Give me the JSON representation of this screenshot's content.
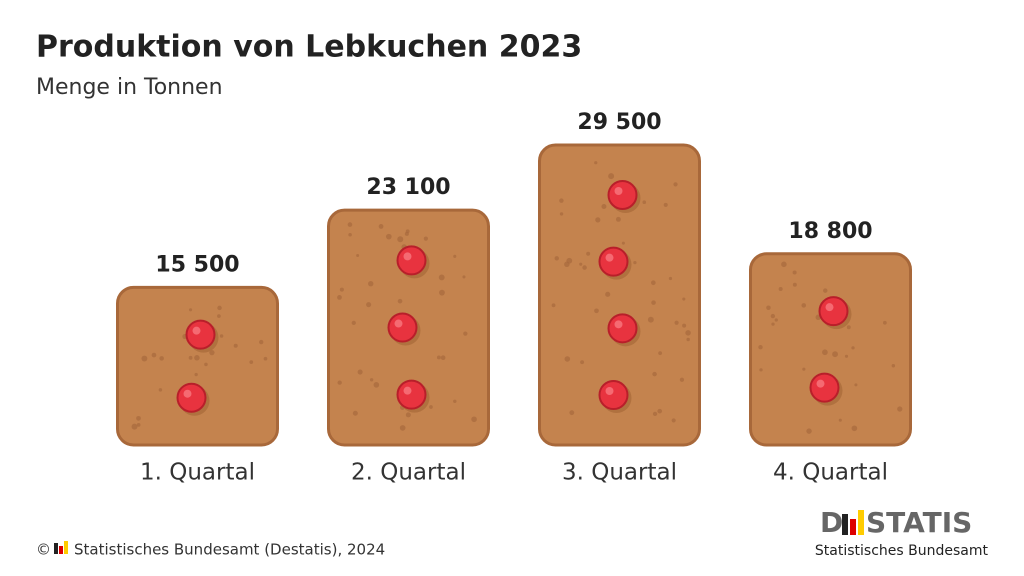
{
  "chart_data": {
    "type": "bar",
    "title": "Produktion von Lebkuchen 2023",
    "subtitle": "Menge in Tonnen",
    "categories": [
      "1. Quartal",
      "2. Quartal",
      "3. Quartal",
      "4. Quartal"
    ],
    "values": [
      15500,
      23100,
      29500,
      18800
    ],
    "value_labels": [
      "15 500",
      "23 100",
      "29 500",
      "18 800"
    ],
    "color": "#c4834e",
    "copyright": "©",
    "source": "Statistisches Bundesamt (Destatis), 2024",
    "logo_left": "D",
    "logo_right": "STATIS",
    "logo_subtitle": "Statistisches Bundesamt"
  }
}
